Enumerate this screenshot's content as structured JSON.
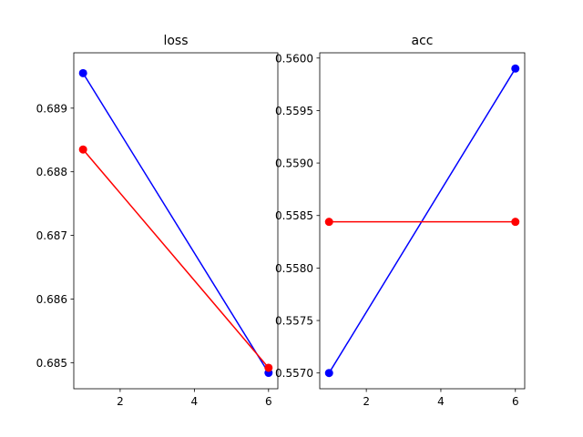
{
  "chart_data": [
    {
      "type": "line",
      "title": "loss",
      "xlabel": "",
      "ylabel": "",
      "xlim": [
        0.75,
        6.25
      ],
      "ylim": [
        0.68459,
        0.68987
      ],
      "xticks": [
        2,
        4,
        6
      ],
      "xtick_labels": [
        "2",
        "4",
        "6"
      ],
      "yticks": [
        0.685,
        0.686,
        0.687,
        0.688,
        0.689
      ],
      "ytick_labels": [
        "0.685",
        "0.686",
        "0.687",
        "0.688",
        "0.689"
      ],
      "grid": false,
      "series": [
        {
          "color": "#0000ff",
          "marker": "circle",
          "x": [
            1,
            6
          ],
          "y": [
            0.68955,
            0.68484
          ]
        },
        {
          "color": "#ff0000",
          "marker": "circle",
          "x": [
            1,
            6
          ],
          "y": [
            0.68835,
            0.68492
          ]
        }
      ]
    },
    {
      "type": "line",
      "title": "acc",
      "xlabel": "",
      "ylabel": "",
      "xlim": [
        0.75,
        6.25
      ],
      "ylim": [
        0.55685,
        0.56005
      ],
      "xticks": [
        2,
        4,
        6
      ],
      "xtick_labels": [
        "2",
        "4",
        "6"
      ],
      "yticks": [
        0.557,
        0.5575,
        0.558,
        0.5585,
        0.559,
        0.5595,
        0.56
      ],
      "ytick_labels": [
        "0.5570",
        "0.5575",
        "0.5580",
        "0.5585",
        "0.5590",
        "0.5595",
        "0.5600"
      ],
      "grid": false,
      "series": [
        {
          "color": "#0000ff",
          "marker": "circle",
          "x": [
            1,
            6
          ],
          "y": [
            0.557,
            0.5599
          ]
        },
        {
          "color": "#ff0000",
          "marker": "circle",
          "x": [
            1,
            6
          ],
          "y": [
            0.55844,
            0.55844
          ]
        }
      ]
    }
  ]
}
